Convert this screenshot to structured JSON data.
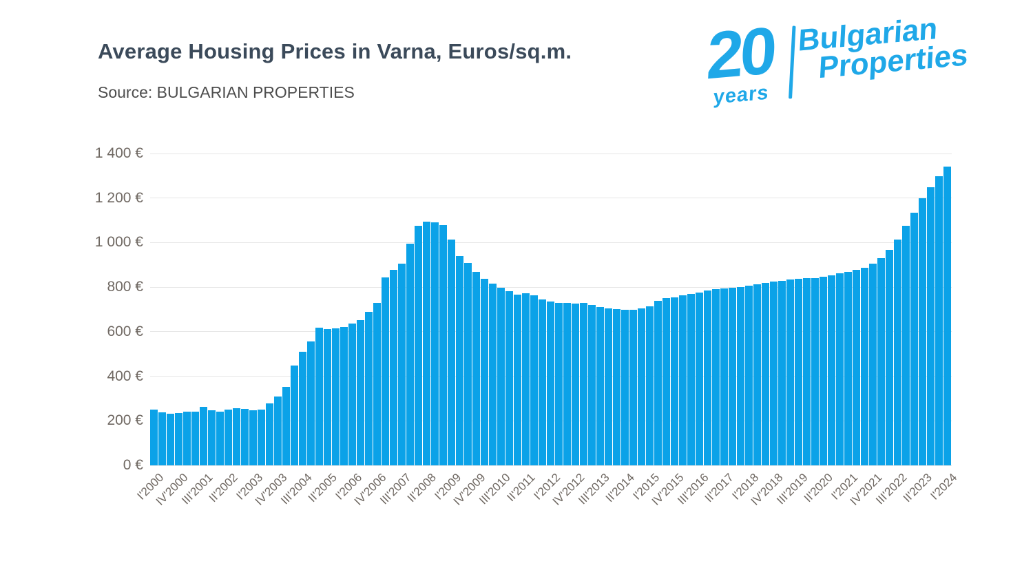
{
  "header": {
    "title": "Average Housing Prices in Varna, Euros/sq.m.",
    "source": "Source: BULGARIAN PROPERTIES"
  },
  "logo": {
    "number": "20",
    "years": "years",
    "line1": "Bulgarian",
    "line2": "Properties",
    "color": "#1fa8e8"
  },
  "chart_data": {
    "type": "bar",
    "title": "Average Housing Prices in Varna, Euros/sq.m.",
    "source": "Source: BULGARIAN PROPERTIES",
    "unit": "Euros/sq.m.",
    "ylim": [
      0,
      1400
    ],
    "y_tick_step": 200,
    "y_tick_labels": [
      "0 €",
      "200 €",
      "400 €",
      "600 €",
      "800 €",
      "1 000 €",
      "1 200 €",
      "1 400 €"
    ],
    "grid": true,
    "bar_color": "#0ba2e8",
    "gridline_color": "#e6e6e6",
    "axis_label_color": "#6f6862",
    "tick_every": 3,
    "x_tick_labels": [
      "I'2000",
      "IV'2000",
      "III'2001",
      "II'2002",
      "I'2003",
      "IV'2003",
      "III'2004",
      "II'2005",
      "I'2006",
      "IV'2006",
      "III'2007",
      "II'2008",
      "I'2009",
      "IV'2009",
      "III'2010",
      "II'2011",
      "I'2012",
      "IV'2012",
      "III'2013",
      "II'2014",
      "I'2015",
      "IV'2015",
      "III'2016",
      "II'2017",
      "I'2018",
      "IV'2018",
      "III'2019",
      "II'2020",
      "I'2021",
      "IV'2021",
      "III'2022",
      "II'2023",
      "I'2024"
    ],
    "values": [
      250,
      237,
      233,
      236,
      242,
      240,
      262,
      247,
      241,
      250,
      258,
      252,
      248,
      250,
      277,
      308,
      353,
      447,
      511,
      556,
      618,
      613,
      615,
      620,
      637,
      653,
      690,
      729,
      843,
      878,
      907,
      996,
      1076,
      1095,
      1090,
      1078,
      1014,
      938,
      908,
      869,
      836,
      817,
      797,
      781,
      765,
      772,
      762,
      744,
      736,
      730,
      728,
      727,
      729,
      719,
      712,
      706,
      701,
      697,
      699,
      704,
      713,
      738,
      750,
      755,
      762,
      770,
      777,
      784,
      790,
      793,
      796,
      800,
      806,
      814,
      820,
      824,
      828,
      833,
      838,
      840,
      842,
      846,
      854,
      862,
      868,
      877,
      886,
      905,
      930,
      966,
      1013,
      1074,
      1133,
      1198,
      1250,
      1298,
      1342
    ]
  }
}
